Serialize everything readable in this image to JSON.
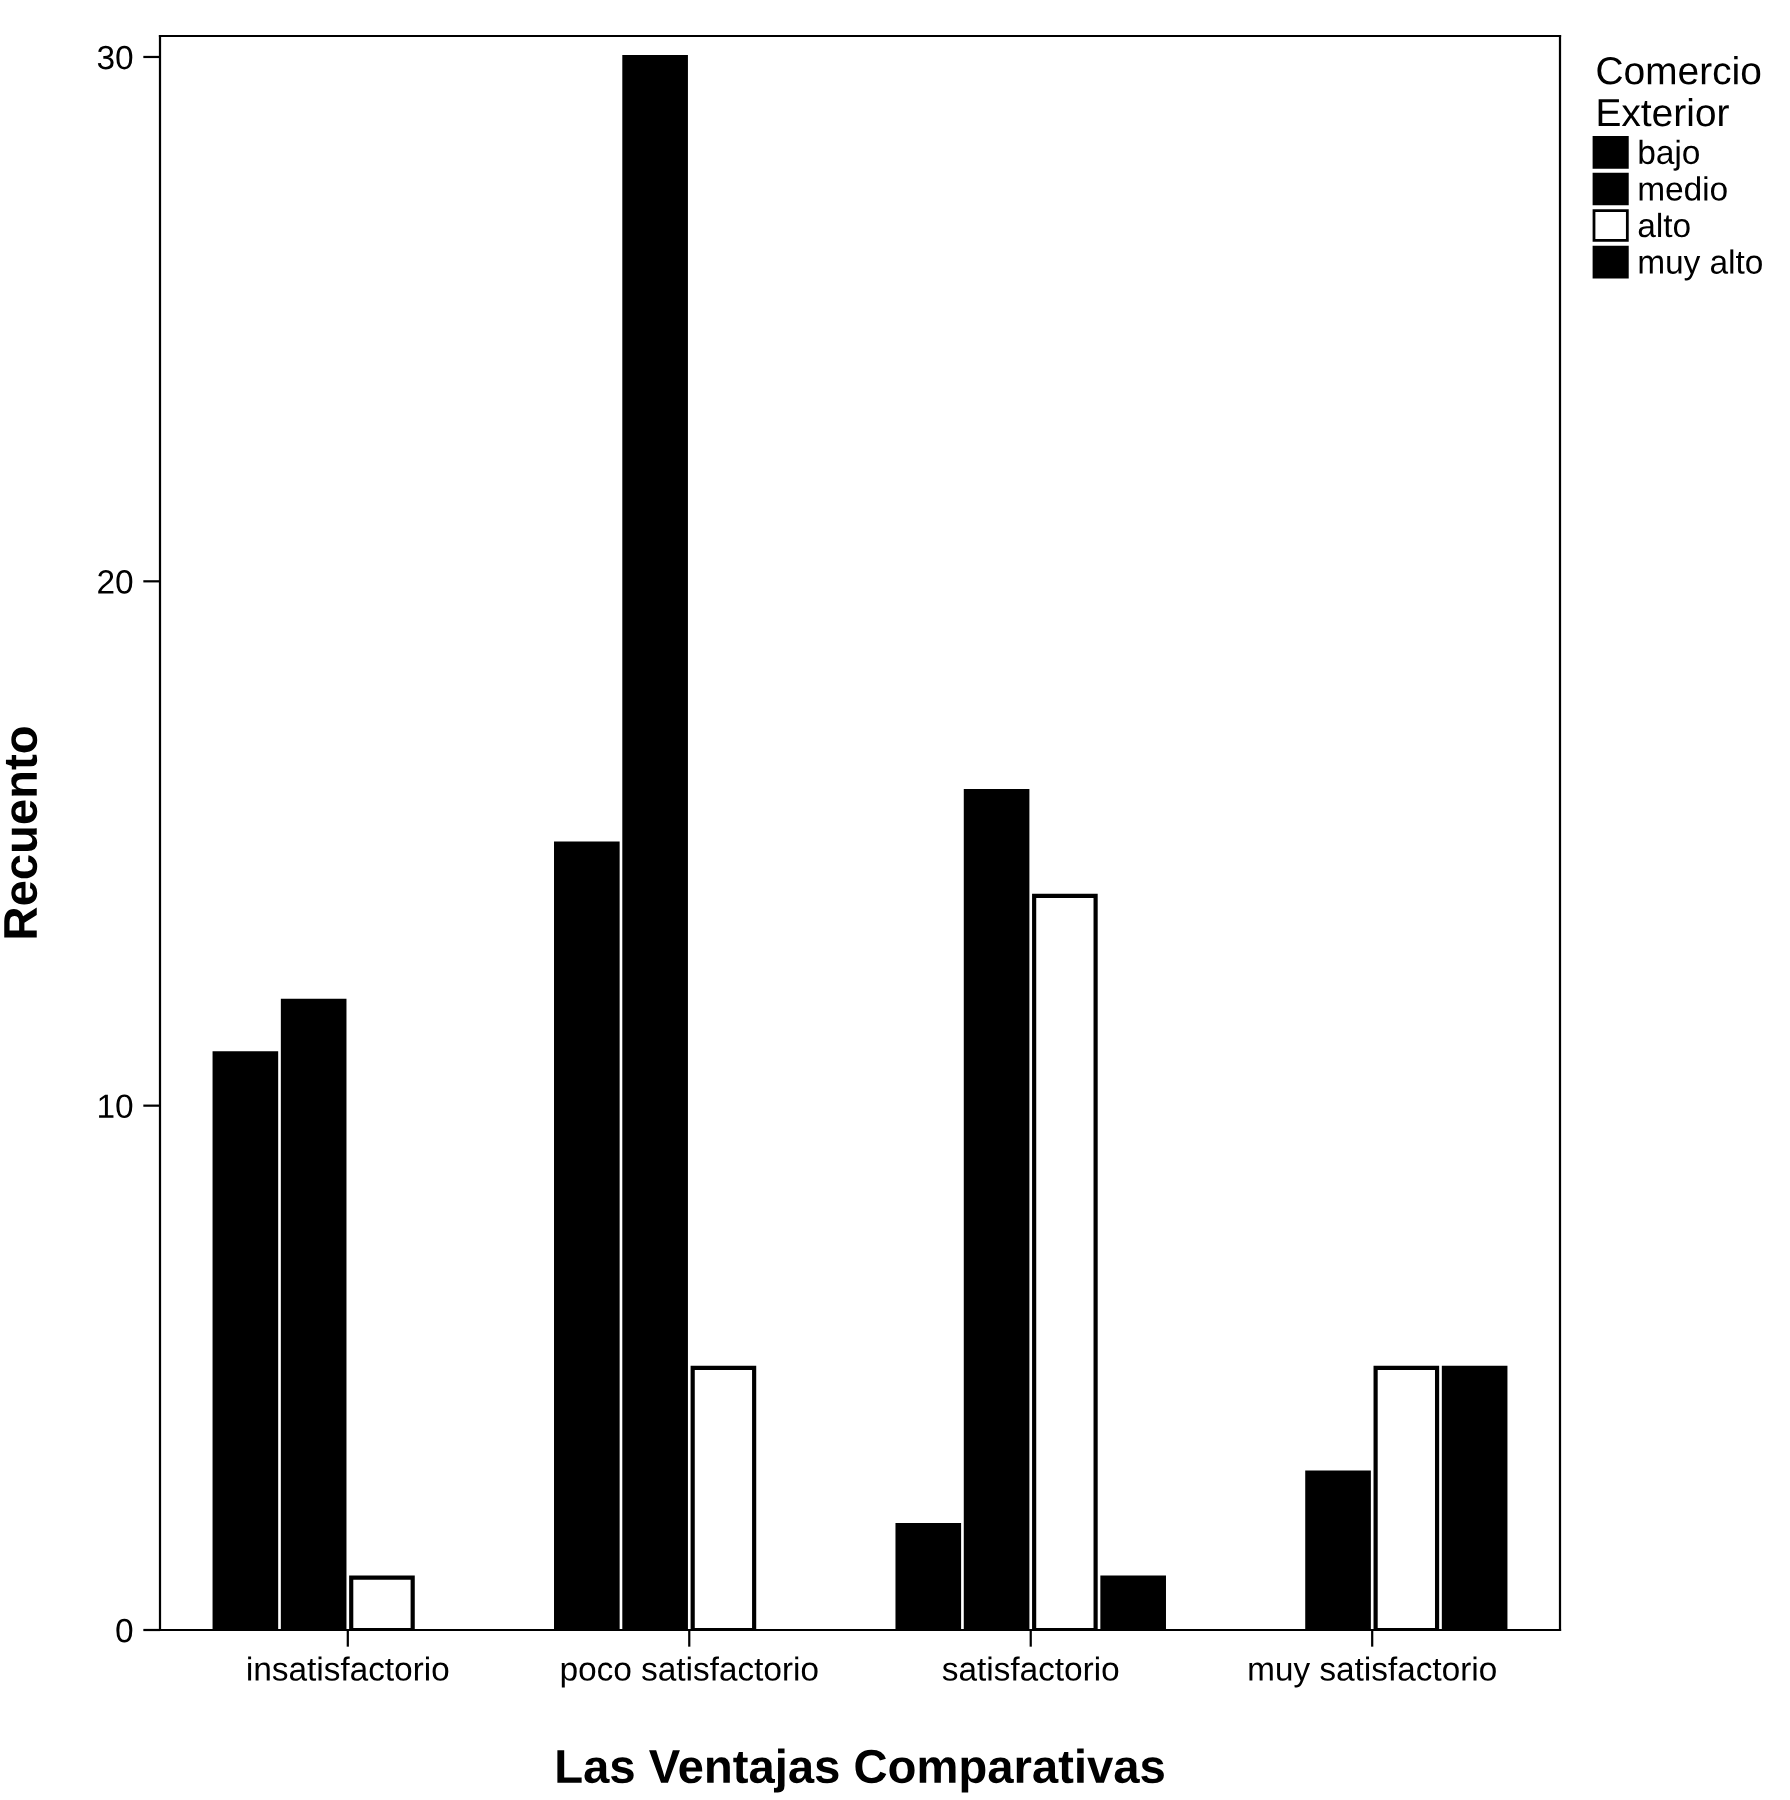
{
  "chart_data": {
    "type": "bar",
    "xlabel": "Las Ventajas Comparativas",
    "ylabel": "Recuento",
    "legend_title": "Comercio\nExterior",
    "legend": "right",
    "categories": [
      "insatisfactorio",
      "poco satisfactorio",
      "satisfactorio",
      "muy satisfactorio"
    ],
    "series": [
      {
        "name": "bajo",
        "color": "#000000",
        "values": [
          11,
          15,
          2,
          null
        ]
      },
      {
        "name": "medio",
        "color": "#000000",
        "values": [
          12,
          30,
          16,
          3
        ]
      },
      {
        "name": "alto",
        "color": "#ffffff",
        "values": [
          1,
          5,
          14,
          5
        ]
      },
      {
        "name": "muy alto",
        "color": "#000000",
        "values": [
          null,
          null,
          1,
          5
        ]
      }
    ],
    "ylim": [
      0,
      30.4
    ],
    "yticks": [
      0,
      10,
      20,
      30
    ],
    "grid": false
  }
}
